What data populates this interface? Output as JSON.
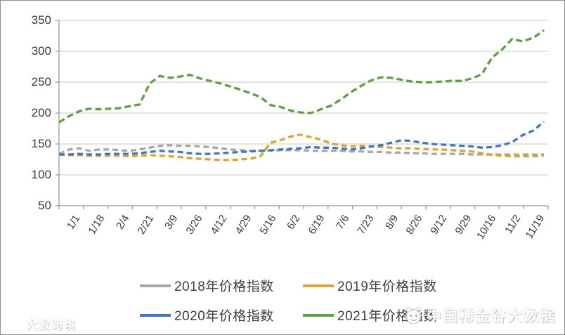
{
  "chart_data": {
    "type": "line",
    "title": "",
    "xlabel": "",
    "ylabel": "",
    "ylim": [
      50,
      350
    ],
    "yticks": [
      50,
      100,
      150,
      200,
      250,
      300,
      350
    ],
    "x_tick_labels": [
      "1/1",
      "1/18",
      "2/4",
      "2/21",
      "3/9",
      "3/26",
      "4/12",
      "4/29",
      "5/16",
      "6/2",
      "6/19",
      "7/6",
      "7/23",
      "8/9",
      "8/26",
      "9/12",
      "9/29",
      "10/16",
      "11/2",
      "11/19"
    ],
    "x_tick_interval_days": 17,
    "x_axis_total_days": 340,
    "grid": "horizontal",
    "legend_position": "bottom",
    "sample_days": [
      0,
      7,
      14,
      21,
      28,
      35,
      42,
      49,
      56,
      63,
      70,
      77,
      84,
      91,
      98,
      105,
      112,
      119,
      126,
      133,
      140,
      147,
      154,
      161,
      168,
      175,
      182,
      189,
      196,
      203,
      210,
      217,
      224,
      231,
      238,
      245,
      252,
      259,
      266,
      273,
      280,
      287,
      294,
      301,
      308,
      315,
      322,
      330,
      337
    ],
    "series": [
      {
        "name": "2018年价格指数",
        "color": "#a6a6a6",
        "dash": "8 5",
        "values": [
          134,
          141,
          143,
          139,
          141,
          141,
          140,
          139,
          141,
          144,
          147,
          148,
          147,
          147,
          146,
          145,
          143,
          141,
          140,
          139,
          139,
          139,
          140,
          140,
          140,
          139,
          139,
          139,
          139,
          138,
          138,
          137,
          137,
          136,
          136,
          135,
          135,
          134,
          134,
          134,
          134,
          133,
          133,
          133,
          133,
          133,
          133,
          133,
          133
        ]
      },
      {
        "name": "2019年价格指数",
        "color": "#dfa32b",
        "dash": "8 5",
        "values": [
          133,
          132,
          132,
          131,
          131,
          131,
          131,
          130,
          131,
          132,
          131,
          130,
          129,
          127,
          126,
          125,
          124,
          124,
          125,
          126,
          130,
          152,
          156,
          162,
          165,
          161,
          157,
          151,
          148,
          146,
          147,
          146,
          145,
          144,
          143,
          143,
          142,
          141,
          141,
          140,
          139,
          138,
          135,
          132,
          131,
          130,
          130,
          130,
          131
        ]
      },
      {
        "name": "2020年价格指数",
        "color": "#4472c4",
        "dash": "8 5",
        "values": [
          133,
          133,
          134,
          133,
          133,
          134,
          134,
          134,
          135,
          137,
          139,
          138,
          137,
          135,
          134,
          134,
          135,
          136,
          137,
          138,
          139,
          140,
          141,
          142,
          143,
          145,
          144,
          144,
          143,
          141,
          143,
          146,
          148,
          152,
          156,
          155,
          152,
          150,
          149,
          148,
          147,
          146,
          144,
          145,
          148,
          153,
          164,
          172,
          186
        ]
      },
      {
        "name": "2021年价格指数",
        "color": "#5f9e41",
        "dash": "9 5",
        "values": [
          185,
          195,
          203,
          207,
          206,
          207,
          208,
          211,
          214,
          248,
          260,
          257,
          259,
          262,
          256,
          252,
          248,
          243,
          238,
          232,
          226,
          213,
          210,
          204,
          201,
          200,
          206,
          212,
          222,
          234,
          244,
          253,
          258,
          257,
          254,
          251,
          250,
          250,
          251,
          252,
          252,
          256,
          263,
          290,
          303,
          320,
          316,
          322,
          334
        ]
      }
    ]
  },
  "watermark": {
    "text": "中国稀金谷大数据"
  },
  "corner_logo": {
    "text": "大数跨境"
  },
  "colors": {
    "gridline": "#c9c9c9",
    "axis": "#9b9b9b",
    "tick_label": "#3b3b3b",
    "legend_text": "#404040"
  }
}
